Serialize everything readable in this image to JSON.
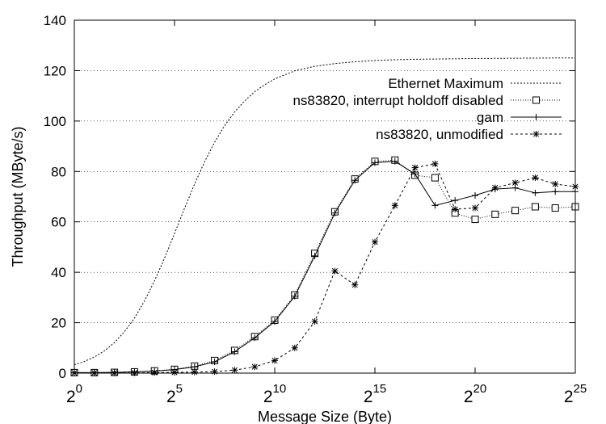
{
  "chart_data": {
    "type": "line",
    "title": "",
    "xlabel": "Message Size (Byte)",
    "ylabel": "Throughput (MByte/s)",
    "x_scale": "log2",
    "xlim": [
      0,
      25
    ],
    "ylim": [
      0,
      140
    ],
    "grid": "horizontal-dotted",
    "legend_position": "top-right",
    "x_ticks": [
      {
        "base": "2",
        "exp": "0",
        "value": 0
      },
      {
        "base": "2",
        "exp": "5",
        "value": 5
      },
      {
        "base": "2",
        "exp": "10",
        "value": 10
      },
      {
        "base": "2",
        "exp": "15",
        "value": 15
      },
      {
        "base": "2",
        "exp": "20",
        "value": 20
      },
      {
        "base": "2",
        "exp": "25",
        "value": 25
      }
    ],
    "y_ticks": [
      "0",
      "20",
      "40",
      "60",
      "80",
      "100",
      "120",
      "140"
    ],
    "series": [
      {
        "name": "Ethernet Maximum",
        "marker": "none",
        "dash": "2,2",
        "x": [
          0,
          0.5,
          1,
          1.5,
          2,
          2.5,
          3,
          3.5,
          4,
          4.5,
          5,
          5.5,
          6,
          6.5,
          7,
          7.5,
          8,
          8.5,
          9,
          9.5,
          10,
          11,
          12,
          13,
          14,
          15,
          16,
          17,
          18,
          19,
          20,
          21,
          22,
          23,
          24,
          25
        ],
        "values": [
          3.3,
          4.6,
          6.4,
          8.8,
          12.1,
          16.4,
          21.8,
          28.6,
          36.6,
          45.6,
          55.4,
          65.4,
          75.0,
          83.8,
          91.6,
          98.2,
          103.6,
          108.0,
          111.6,
          114.4,
          116.7,
          119.9,
          121.7,
          122.8,
          123.5,
          124.0,
          124.3,
          124.5,
          124.6,
          124.7,
          124.8,
          124.85,
          124.9,
          124.95,
          125.0,
          125.0
        ]
      },
      {
        "name": "ns83820, interrupt holdoff disabled",
        "marker": "square",
        "dash": "1,2",
        "x": [
          0,
          1,
          2,
          3,
          4,
          5,
          6,
          7,
          8,
          9,
          10,
          11,
          12,
          13,
          14,
          15,
          16,
          17,
          18,
          19,
          20,
          21,
          22,
          23,
          24,
          25
        ],
        "values": [
          0.2,
          0.2,
          0.3,
          0.5,
          0.9,
          1.5,
          2.8,
          5.0,
          9.0,
          14.5,
          21.0,
          31.0,
          47.5,
          64.0,
          77.0,
          84.0,
          84.5,
          78.5,
          77.5,
          63.5,
          61.0,
          63.0,
          64.5,
          66.0,
          65.5,
          66.0
        ]
      },
      {
        "name": "gam",
        "marker": "plus",
        "dash": "",
        "x": [
          0,
          1,
          2,
          3,
          4,
          5,
          6,
          7,
          8,
          9,
          10,
          11,
          12,
          13,
          14,
          15,
          16,
          17,
          18,
          19,
          20,
          21,
          22,
          23,
          24,
          25
        ],
        "values": [
          0.2,
          0.2,
          0.3,
          0.5,
          0.8,
          1.4,
          2.5,
          4.5,
          8.5,
          14.0,
          20.5,
          30.5,
          46.5,
          63.5,
          76.5,
          83.5,
          84.0,
          79.0,
          66.5,
          68.5,
          70.5,
          73.0,
          73.5,
          71.5,
          72.0,
          72.0
        ]
      },
      {
        "name": "ns83820, unmodified",
        "marker": "star",
        "dash": "3,3",
        "x": [
          0,
          1,
          2,
          3,
          4,
          5,
          6,
          7,
          8,
          9,
          10,
          11,
          12,
          13,
          14,
          15,
          16,
          17,
          18,
          19,
          20,
          21,
          22,
          23,
          24,
          25
        ],
        "values": [
          0.1,
          0.1,
          0.1,
          0.1,
          0.2,
          0.3,
          0.4,
          0.6,
          1.2,
          2.5,
          5.0,
          10.0,
          20.5,
          40.5,
          35.0,
          52.0,
          66.5,
          81.5,
          83.0,
          65.0,
          65.5,
          73.5,
          75.5,
          77.5,
          75.0,
          74.0
        ]
      }
    ]
  }
}
